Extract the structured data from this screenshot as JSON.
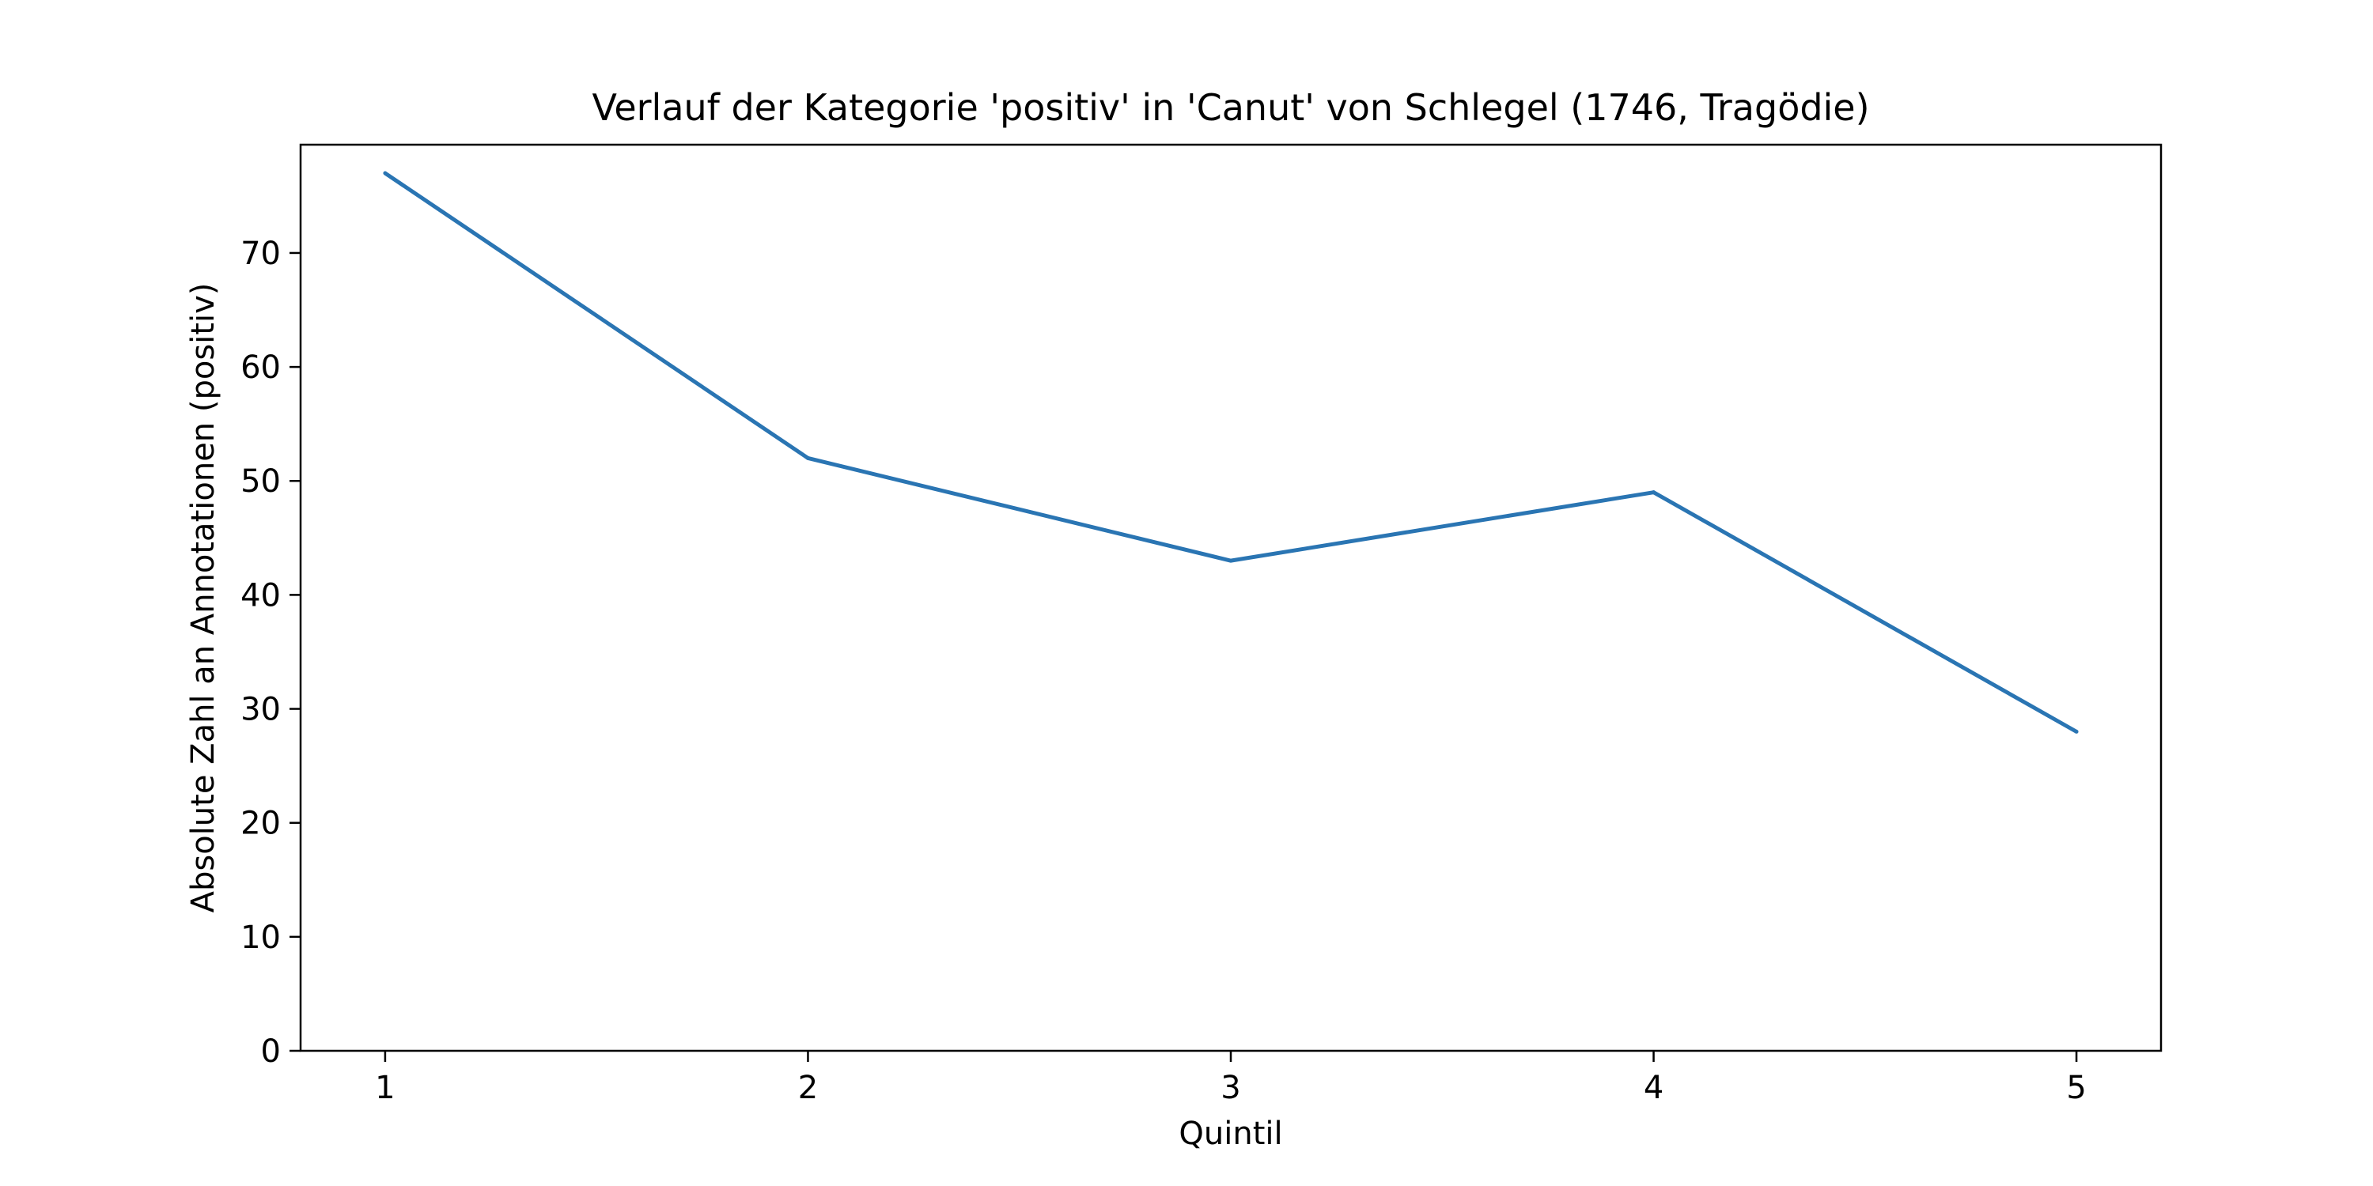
{
  "chart_data": {
    "type": "line",
    "title": "Verlauf der Kategorie 'positiv' in 'Canut' von Schlegel (1746, Tragödie)",
    "xlabel": "Quintil",
    "ylabel": "Absolute Zahl an Annotationen (positiv)",
    "x": [
      1,
      2,
      3,
      4,
      5
    ],
    "series": [
      {
        "values": [
          77,
          52,
          43,
          49,
          28
        ],
        "color": "#2a75b3"
      }
    ],
    "xticks": [
      1,
      2,
      3,
      4,
      5
    ],
    "yticks": [
      0,
      10,
      20,
      30,
      40,
      50,
      60,
      70
    ],
    "xlim": [
      0.8,
      5.2
    ],
    "ylim": [
      0,
      79.5
    ],
    "grid": false,
    "legend": "none"
  }
}
